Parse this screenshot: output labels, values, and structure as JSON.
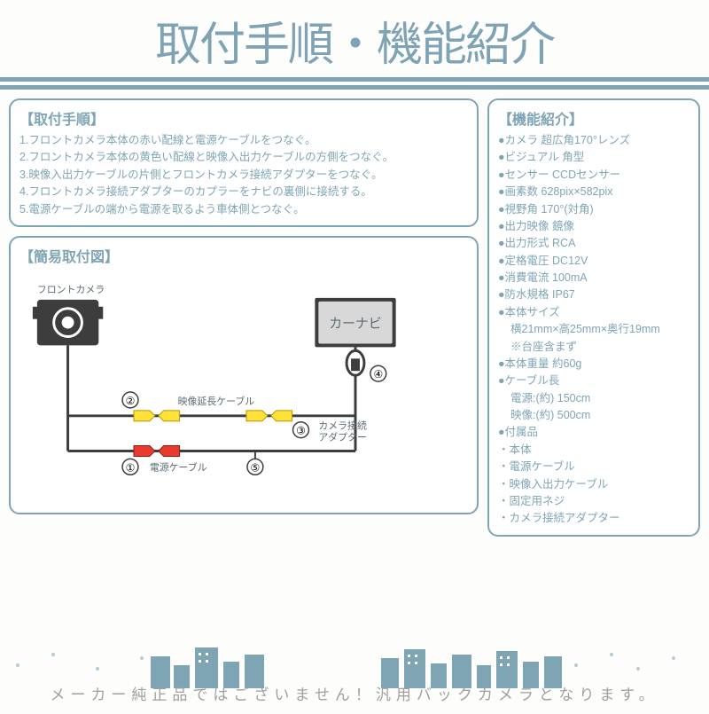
{
  "colors": {
    "accent": "#7fa5b5",
    "text": "#7fa5b5",
    "panel_border": "#7fa5b5",
    "diagram_label": "#5a6b73",
    "yellow": "#ffe13a",
    "red": "#e83b2e",
    "black": "#3d3d3d",
    "gray_fill": "#d8d8d8",
    "white": "#ffffff"
  },
  "title": "取付手順・機能紹介",
  "install": {
    "heading": "【取付手順】",
    "items": [
      "1.フロントカメラ本体の赤い配線と電源ケーブルをつなぐ。",
      "2.フロントカメラ本体の黄色い配線と映像入出力ケーブルの方側をつなぐ。",
      "3.映像入出力ケーブルの片側とフロントカメラ接続アダプターをつなぐ。",
      "4.フロントカメラ接続アダプターのカプラーをナビの裏側に接続する。",
      "5.電源ケーブルの端から電源を取るよう車体側とつなぐ。"
    ]
  },
  "diagram": {
    "heading": "【簡易取付図】",
    "labels": {
      "camera": "フロントカメラ",
      "navi": "カーナビ",
      "video_ext": "映像延長ケーブル",
      "adapter": "カメラ接続\nアダプター",
      "power": "電源ケーブル"
    },
    "step_nums": [
      "①",
      "②",
      "③",
      "④",
      "⑤"
    ]
  },
  "specs": {
    "heading": "【機能紹介】",
    "items": [
      "●カメラ 超広角170°レンズ",
      "●ビジュアル 角型",
      "●センサー CCDセンサー",
      "●画素数 628pix×582pix",
      "●視野角 170°(対角)",
      "●出力映像 鏡像",
      "●出力形式 RCA",
      "●定格電圧 DC12V",
      "●消費電流 100mA",
      "●防水規格 IP67",
      "●本体サイズ",
      "  横21mm×高25mm×奥行19mm",
      "  ※台座含まず",
      "●本体重量 約60g",
      "●ケーブル長",
      "  電源:(約) 150cm",
      "  映像:(約) 500cm",
      "●付属品",
      "・本体",
      "・電源ケーブル",
      "・映像入出力ケーブル",
      "・固定用ネジ",
      "・カメラ接続アダプター"
    ]
  },
  "disclaimer": "メーカー純正品ではございません！汎用バックカメラとなります。"
}
